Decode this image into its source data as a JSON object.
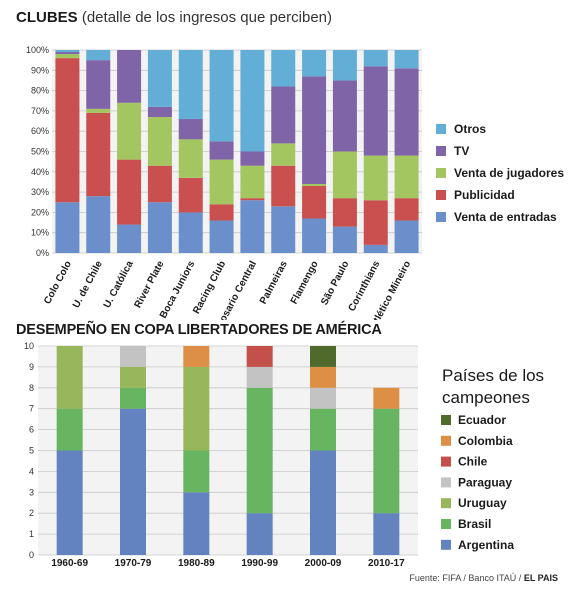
{
  "titles": {
    "chart1_bold": "CLUBES",
    "chart1_rest": "(detalle de los ingresos que perciben)",
    "chart2": "DESEMPEÑO EN COPA LIBERTADORES DE AMÉRICA"
  },
  "legend2_title_lines": [
    "Países de los",
    "campeones"
  ],
  "source": {
    "text": "Fuente: FIFA / Banco ITAÚ  /",
    "brand": "EL PAIS"
  },
  "chart_data": [
    {
      "type": "bar",
      "stacked": true,
      "title": "CLUBES (detalle de los ingresos que perciben)",
      "categories": [
        "Colo Colo",
        "U. de Chile",
        "U. Católica",
        "River Plate",
        "Boca Juniors",
        "Racing Club",
        "Rosario Central",
        "Palmeiras",
        "Flamengo",
        "São Paulo",
        "Corinthians",
        "Atlético Mineiro"
      ],
      "ylim": [
        0,
        100
      ],
      "yticks": [
        "0%",
        "10%",
        "20%",
        "30%",
        "40%",
        "50%",
        "60%",
        "70%",
        "80%",
        "90%",
        "100%"
      ],
      "grid": true,
      "legend_position": "right",
      "series": [
        {
          "name": "Venta de entradas",
          "color": "#6a8fcb",
          "values": [
            25,
            28,
            14,
            25,
            20,
            16,
            26,
            23,
            17,
            13,
            4,
            16
          ]
        },
        {
          "name": "Publicidad",
          "color": "#c9504e",
          "values": [
            71,
            41,
            32,
            18,
            17,
            8,
            1,
            20,
            16,
            14,
            22,
            11
          ]
        },
        {
          "name": "Venta de jugadores",
          "color": "#a3c660",
          "values": [
            2,
            2,
            28,
            24,
            19,
            22,
            16,
            11,
            1,
            23,
            22,
            21
          ]
        },
        {
          "name": "TV",
          "color": "#8064a8",
          "values": [
            1,
            24,
            26,
            5,
            10,
            9,
            7,
            28,
            53,
            35,
            44,
            43
          ]
        },
        {
          "name": "Otros",
          "color": "#63aed6",
          "values": [
            1,
            5,
            0,
            28,
            34,
            45,
            50,
            18,
            13,
            15,
            8,
            9
          ]
        }
      ]
    },
    {
      "type": "bar",
      "stacked": true,
      "title": "DESEMPEÑO EN COPA LIBERTADORES DE AMÉRICA",
      "categories": [
        "1960-69",
        "1970-79",
        "1980-89",
        "1990-99",
        "2000-09",
        "2010-17"
      ],
      "ylim": [
        0,
        10
      ],
      "yticks": [
        "0",
        "1",
        "2",
        "3",
        "4",
        "5",
        "6",
        "7",
        "8",
        "9",
        "10"
      ],
      "grid": true,
      "legend_position": "right",
      "legend_title": "Países de los campeones",
      "series": [
        {
          "name": "Argentina",
          "color": "#6283bf",
          "values": [
            5,
            7,
            3,
            2,
            5,
            2
          ]
        },
        {
          "name": "Brasil",
          "color": "#67b560",
          "values": [
            2,
            1,
            2,
            6,
            2,
            5
          ]
        },
        {
          "name": "Uruguay",
          "color": "#98b65a",
          "values": [
            3,
            1,
            4,
            0,
            0,
            0
          ]
        },
        {
          "name": "Paraguay",
          "color": "#c3c3c3",
          "values": [
            0,
            1,
            0,
            1,
            1,
            0
          ]
        },
        {
          "name": "Chile",
          "color": "#c4504c",
          "values": [
            0,
            0,
            0,
            1,
            0,
            0
          ]
        },
        {
          "name": "Colombia",
          "color": "#dc8f45",
          "values": [
            0,
            0,
            1,
            0,
            1,
            1
          ]
        },
        {
          "name": "Ecuador",
          "color": "#4f6a2a",
          "values": [
            0,
            0,
            0,
            0,
            1,
            0
          ]
        }
      ]
    }
  ]
}
